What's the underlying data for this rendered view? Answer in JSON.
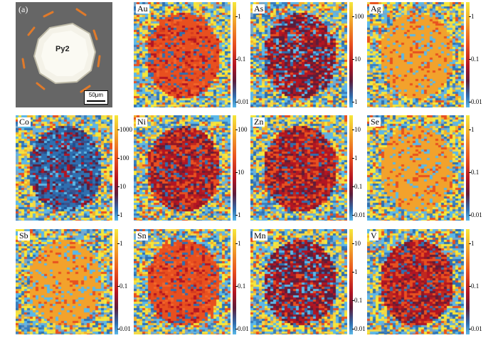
{
  "figure_label": "(a)",
  "grain_label": "Py2",
  "scale_bar": "50μm",
  "colorbar_colors": [
    "#f5e73b",
    "#f2b02c",
    "#e8501f",
    "#b31523",
    "#5d1d3b",
    "#2f6fb0",
    "#5bb8e8"
  ],
  "maps": [
    {
      "element": "Au",
      "ticks": [
        "1",
        "0.1",
        "0.01"
      ],
      "tone": "orange"
    },
    {
      "element": "As",
      "ticks": [
        "100",
        "10",
        "1"
      ],
      "tone": "mixed"
    },
    {
      "element": "Ag",
      "ticks": [
        "1",
        "0.1",
        "0.01"
      ],
      "tone": "flat"
    },
    {
      "element": "Co",
      "ticks": [
        "1000",
        "100",
        "10",
        "1"
      ],
      "tone": "blue"
    },
    {
      "element": "Ni",
      "ticks": [
        "100",
        "10",
        "1"
      ],
      "tone": "red"
    },
    {
      "element": "Zn",
      "ticks": [
        "10",
        "1",
        "0.1",
        "0.01"
      ],
      "tone": "red"
    },
    {
      "element": "Se",
      "ticks": [
        "1",
        "0.1",
        "0.01"
      ],
      "tone": "flat"
    },
    {
      "element": "Sb",
      "ticks": [
        "1",
        "0.1",
        "0.01"
      ],
      "tone": "flat"
    },
    {
      "element": "Sn",
      "ticks": [
        "1",
        "0.1",
        "0.01"
      ],
      "tone": "orange"
    },
    {
      "element": "Mn",
      "ticks": [
        "10",
        "1",
        "0.1",
        "0.01"
      ],
      "tone": "mixed"
    },
    {
      "element": "V",
      "ticks": [
        "1",
        "0.1",
        "0.01"
      ],
      "tone": "red"
    }
  ]
}
